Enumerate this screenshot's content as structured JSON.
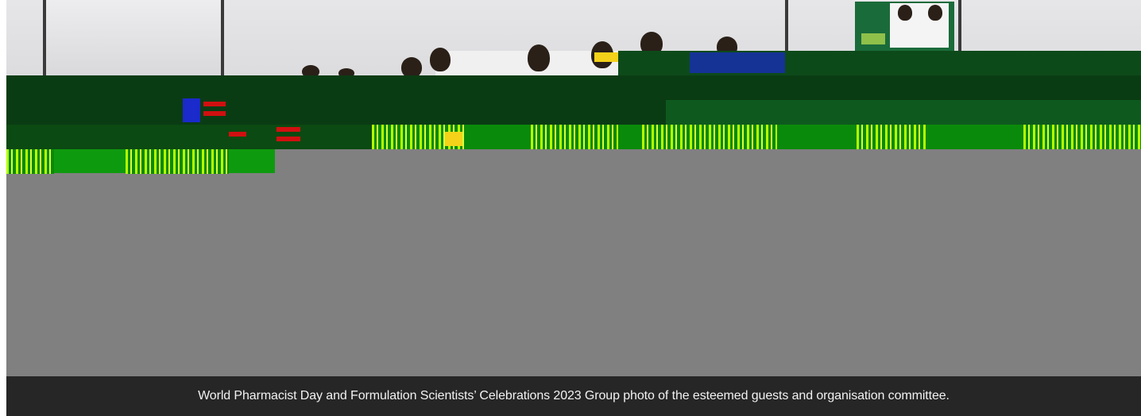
{
  "figure": {
    "caption": "World Pharmacist Day and Formulation Scientists’ Celebrations 2023 Group photo of the esteemed guests and organisation committee.",
    "photo_description_icon": "group-photo-image",
    "colors": {
      "caption_background": "#262626",
      "caption_text": "#f2f2f2",
      "photo_placeholder": "#808080"
    }
  }
}
